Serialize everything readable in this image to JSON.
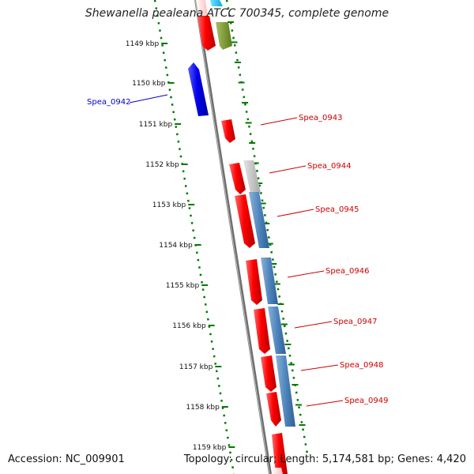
{
  "title": "Shewanella pealeana ATCC 700345, complete genome",
  "footer": {
    "accession": "Accession: NC_009901",
    "summary": "Topology: circular; Length: 5,174,581 bp; Genes: 4,420"
  },
  "colors": {
    "forward_cds": "#ff0000",
    "reverse_cds": "#0000ee",
    "rna_feature": "#4f85be",
    "backbone": "#777777",
    "tick": "#007a00",
    "label_blue": "#0000cc",
    "label_red": "#cc0000"
  },
  "ticks": [
    {
      "label": "1149 kbp"
    },
    {
      "label": "1150 kbp"
    },
    {
      "label": "1151 kbp"
    },
    {
      "label": "1152 kbp"
    },
    {
      "label": "1153 kbp"
    },
    {
      "label": "1154 kbp"
    },
    {
      "label": "1155 kbp"
    },
    {
      "label": "1156 kbp"
    },
    {
      "label": "1157 kbp"
    },
    {
      "label": "1158 kbp"
    },
    {
      "label": "1159 kbp"
    }
  ],
  "genes": [
    {
      "name": "Spea_0942",
      "strand": "reverse"
    },
    {
      "name": "Spea_0943",
      "strand": "forward"
    },
    {
      "name": "Spea_0944",
      "strand": "forward"
    },
    {
      "name": "Spea_0945",
      "strand": "forward"
    },
    {
      "name": "Spea_0946",
      "strand": "forward"
    },
    {
      "name": "Spea_0947",
      "strand": "forward"
    },
    {
      "name": "Spea_0948",
      "strand": "forward"
    },
    {
      "name": "Spea_0949",
      "strand": "forward"
    }
  ]
}
